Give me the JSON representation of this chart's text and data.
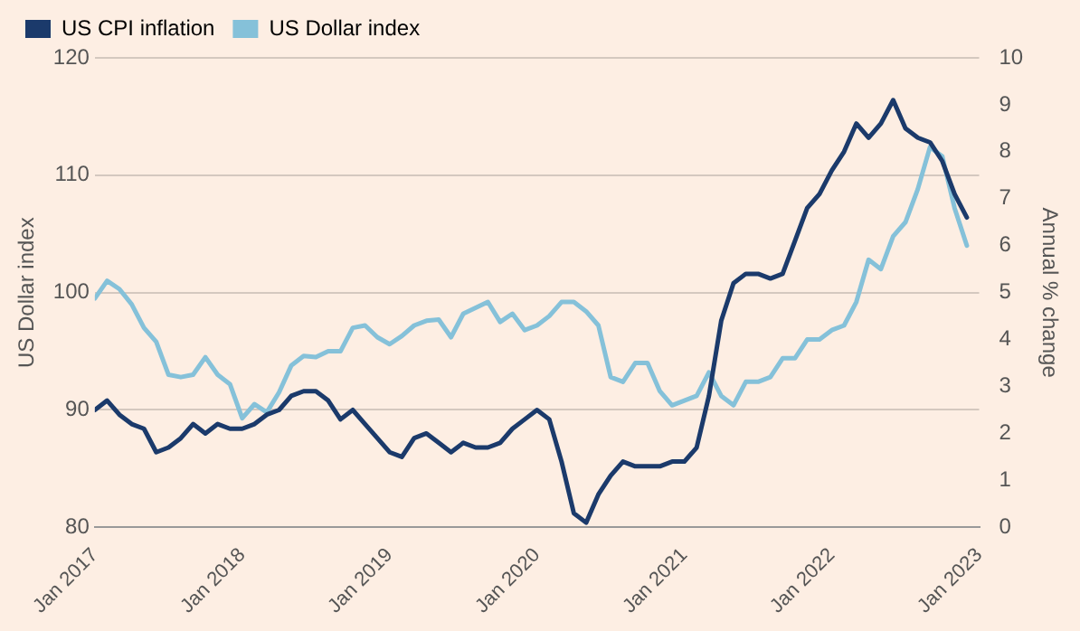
{
  "chart_data": {
    "type": "line",
    "ylabel": "US Dollar index",
    "y2label": "Annual % change",
    "legend": "top left",
    "grid": "y",
    "marker": "none",
    "line_style": "solid",
    "x": [
      "2017-01",
      "2017-02",
      "2017-03",
      "2017-04",
      "2017-05",
      "2017-06",
      "2017-07",
      "2017-08",
      "2017-09",
      "2017-10",
      "2017-11",
      "2017-12",
      "2018-01",
      "2018-02",
      "2018-03",
      "2018-04",
      "2018-05",
      "2018-06",
      "2018-07",
      "2018-08",
      "2018-09",
      "2018-10",
      "2018-11",
      "2018-12",
      "2019-01",
      "2019-02",
      "2019-03",
      "2019-04",
      "2019-05",
      "2019-06",
      "2019-07",
      "2019-08",
      "2019-09",
      "2019-10",
      "2019-11",
      "2019-12",
      "2020-01",
      "2020-02",
      "2020-03",
      "2020-04",
      "2020-05",
      "2020-06",
      "2020-07",
      "2020-08",
      "2020-09",
      "2020-10",
      "2020-11",
      "2020-12",
      "2021-01",
      "2021-02",
      "2021-03",
      "2021-04",
      "2021-05",
      "2021-06",
      "2021-07",
      "2021-08",
      "2021-09",
      "2021-10",
      "2021-11",
      "2021-12",
      "2022-01",
      "2022-02",
      "2022-03",
      "2022-04",
      "2022-05",
      "2022-06",
      "2022-07",
      "2022-08",
      "2022-09",
      "2022-10",
      "2022-11",
      "2022-12"
    ],
    "xlim": [
      "2017-01",
      "2023-01"
    ],
    "xticks": [
      {
        "value": "2017-01",
        "label": "Jan 2017"
      },
      {
        "value": "2018-01",
        "label": "Jan 2018"
      },
      {
        "value": "2019-01",
        "label": "Jan 2019"
      },
      {
        "value": "2020-01",
        "label": "Jan 2020"
      },
      {
        "value": "2021-01",
        "label": "Jan 2021"
      },
      {
        "value": "2022-01",
        "label": "Jan 2022"
      },
      {
        "value": "2023-01",
        "label": "Jan 2023"
      }
    ],
    "ylim": [
      80,
      120
    ],
    "yticks": [
      80,
      90,
      100,
      110,
      120
    ],
    "y2lim": [
      0,
      10
    ],
    "y2ticks": [
      0,
      1,
      2,
      3,
      4,
      5,
      6,
      7,
      8,
      9,
      10
    ],
    "series": [
      {
        "name": "US CPI inflation",
        "color": "#1b3a6b",
        "axis": "y2",
        "values": [
          2.5,
          2.7,
          2.4,
          2.2,
          2.1,
          1.6,
          1.7,
          1.9,
          2.2,
          2.0,
          2.2,
          2.1,
          2.1,
          2.2,
          2.4,
          2.5,
          2.8,
          2.9,
          2.9,
          2.7,
          2.3,
          2.5,
          2.2,
          1.9,
          1.6,
          1.5,
          1.9,
          2.0,
          1.8,
          1.6,
          1.8,
          1.7,
          1.7,
          1.8,
          2.1,
          2.3,
          2.5,
          2.3,
          1.4,
          0.3,
          0.1,
          0.7,
          1.1,
          1.4,
          1.3,
          1.3,
          1.3,
          1.4,
          1.4,
          1.7,
          2.8,
          4.4,
          5.2,
          5.4,
          5.4,
          5.3,
          5.4,
          6.1,
          6.8,
          7.1,
          7.6,
          8.0,
          8.6,
          8.3,
          8.6,
          9.1,
          8.5,
          8.3,
          8.2,
          7.8,
          7.1,
          6.6
        ]
      },
      {
        "name": "US Dollar index",
        "color": "#85c1d9",
        "values": [
          99.5,
          101,
          100.3,
          99,
          97,
          95.8,
          93,
          92.8,
          93,
          94.5,
          93,
          92.2,
          89.3,
          90.5,
          89.8,
          91.5,
          93.8,
          94.6,
          94.5,
          95,
          95,
          97,
          97.2,
          96.2,
          95.6,
          96.3,
          97.2,
          97.6,
          97.7,
          96.2,
          98.2,
          98.7,
          99.2,
          97.5,
          98.2,
          96.8,
          97.2,
          98,
          99.2,
          99.2,
          98.4,
          97.2,
          92.8,
          92.4,
          94,
          94,
          91.6,
          90.4,
          90.8,
          91.2,
          93.2,
          91.2,
          90.4,
          92.4,
          92.4,
          92.8,
          94.4,
          94.4,
          96,
          96,
          96.8,
          97.2,
          99.2,
          102.8,
          102,
          104.8,
          106,
          108.8,
          112.4,
          111.6,
          107.2,
          104
        ]
      }
    ]
  }
}
